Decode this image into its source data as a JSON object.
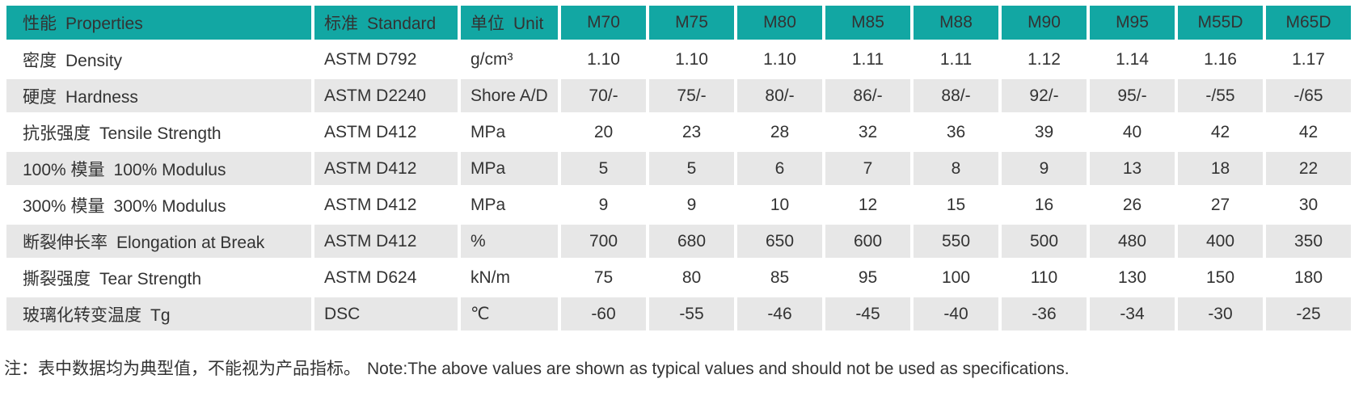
{
  "colors": {
    "header_bg": "#12a7a3",
    "row_alt_bg": "#e7e7e7",
    "text": "#333333"
  },
  "table": {
    "header": {
      "property_cn": "性能",
      "property_en": "Properties",
      "standard_cn": "标准",
      "standard_en": "Standard",
      "unit_cn": "单位",
      "unit_en": "Unit",
      "grades": [
        "M70",
        "M75",
        "M80",
        "M85",
        "M88",
        "M90",
        "M95",
        "M55D",
        "M65D"
      ]
    },
    "rows": [
      {
        "property_cn": "密度",
        "property_en": "Density",
        "standard": "ASTM D792",
        "unit": "g/cm³",
        "values": [
          "1.10",
          "1.10",
          "1.10",
          "1.11",
          "1.11",
          "1.12",
          "1.14",
          "1.16",
          "1.17"
        ]
      },
      {
        "property_cn": "硬度",
        "property_en": "Hardness",
        "standard": "ASTM D2240",
        "unit": "Shore A/D",
        "values": [
          "70/-",
          "75/-",
          "80/-",
          "86/-",
          "88/-",
          "92/-",
          "95/-",
          "-/55",
          "-/65"
        ]
      },
      {
        "property_cn": "抗张强度",
        "property_en": "Tensile Strength",
        "standard": "ASTM D412",
        "unit": "MPa",
        "values": [
          "20",
          "23",
          "28",
          "32",
          "36",
          "39",
          "40",
          "42",
          "42"
        ]
      },
      {
        "property_cn": "100% 模量",
        "property_en": "100% Modulus",
        "standard": "ASTM D412",
        "unit": "MPa",
        "values": [
          "5",
          "5",
          "6",
          "7",
          "8",
          "9",
          "13",
          "18",
          "22"
        ]
      },
      {
        "property_cn": "300% 模量",
        "property_en": "300% Modulus",
        "standard": "ASTM D412",
        "unit": "MPa",
        "values": [
          "9",
          "9",
          "10",
          "12",
          "15",
          "16",
          "26",
          "27",
          "30"
        ]
      },
      {
        "property_cn": "断裂伸长率",
        "property_en": "Elongation at Break",
        "standard": "ASTM D412",
        "unit": "%",
        "values": [
          "700",
          "680",
          "650",
          "600",
          "550",
          "500",
          "480",
          "400",
          "350"
        ]
      },
      {
        "property_cn": "撕裂强度",
        "property_en": "Tear Strength",
        "standard": "ASTM D624",
        "unit": "kN/m",
        "values": [
          "75",
          "80",
          "85",
          "95",
          "100",
          "110",
          "130",
          "150",
          "180"
        ]
      },
      {
        "property_cn": "玻璃化转变温度",
        "property_en": "Tg",
        "standard": "DSC",
        "unit": "℃",
        "values": [
          "-60",
          "-55",
          "-46",
          "-45",
          "-40",
          "-36",
          "-34",
          "-30",
          "-25"
        ]
      }
    ],
    "footnote_cn": "注：表中数据均为典型值，不能视为产品指标。",
    "footnote_en": "Note:The above values are shown as typical values and should not be used as specifications."
  }
}
